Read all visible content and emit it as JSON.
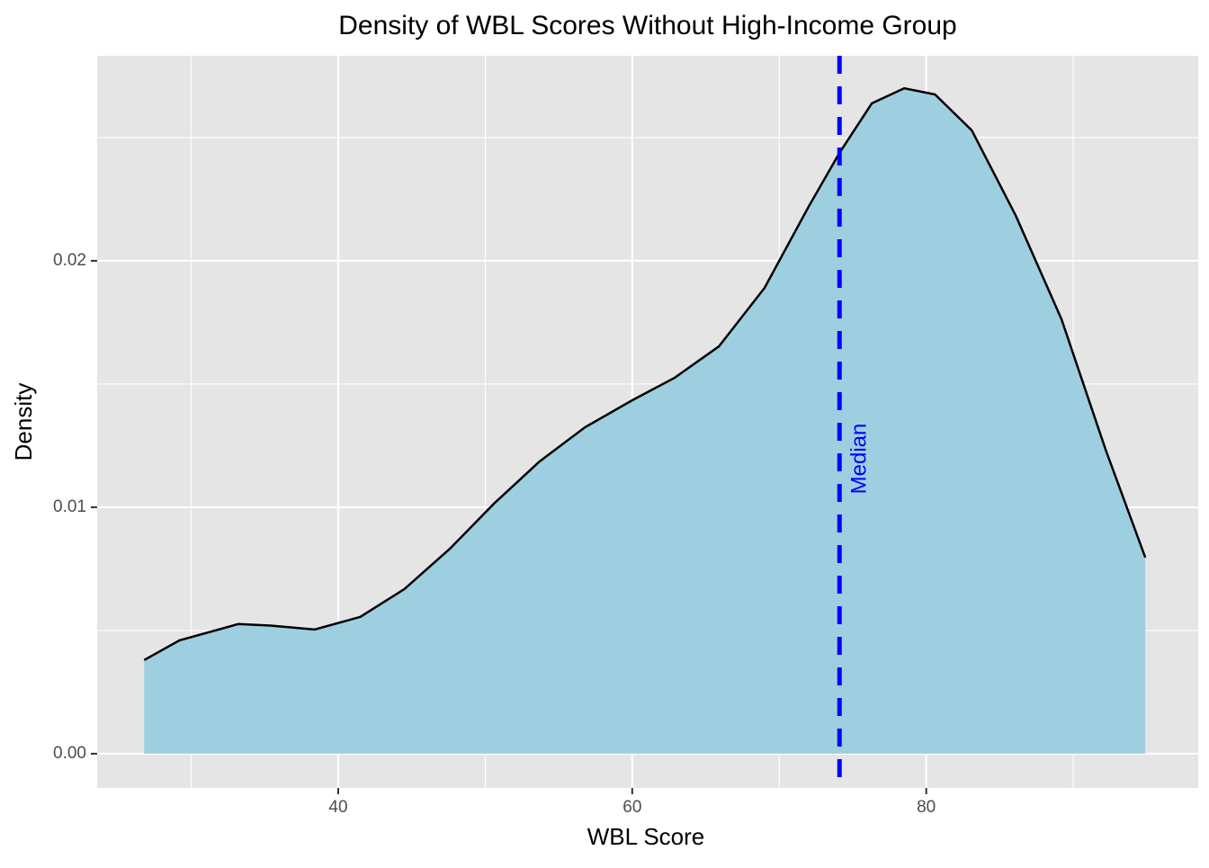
{
  "chart_data": {
    "type": "density",
    "title": "Density of WBL Scores Without High-Income Group",
    "xlabel": "WBL Score",
    "ylabel": "Density",
    "x": [
      26.8,
      29.2,
      33.2,
      35.4,
      38.4,
      41.5,
      44.5,
      47.6,
      50.6,
      53.7,
      56.8,
      60.0,
      62.9,
      65.9,
      69.0,
      72.0,
      74.1,
      76.3,
      78.5,
      80.6,
      83.1,
      86.1,
      89.2,
      92.2,
      94.9
    ],
    "values": [
      0.0038,
      0.0046,
      0.00526,
      0.0052,
      0.00504,
      0.00555,
      0.00668,
      0.00832,
      0.01015,
      0.01186,
      0.01325,
      0.01434,
      0.01526,
      0.01653,
      0.0189,
      0.0222,
      0.02438,
      0.02639,
      0.027,
      0.02675,
      0.02529,
      0.02182,
      0.01763,
      0.01234,
      0.00796
    ],
    "fill": "#9ecfe0",
    "line_color": "#000000",
    "xlim": [
      23.6,
      98.5
    ],
    "ylim": [
      -0.00139,
      0.02832
    ],
    "xticks": [
      40,
      60,
      80
    ],
    "yticks": [
      {
        "value": 0,
        "label": "0.00"
      },
      0.01,
      0.02
    ],
    "x_minor_grid": [
      30,
      50,
      70,
      90
    ],
    "y_minor_grid": [
      0.005,
      0.015,
      0.025
    ],
    "grid": true,
    "vline": {
      "x": 74.1,
      "label": "Median",
      "color": "#0000ff"
    }
  }
}
